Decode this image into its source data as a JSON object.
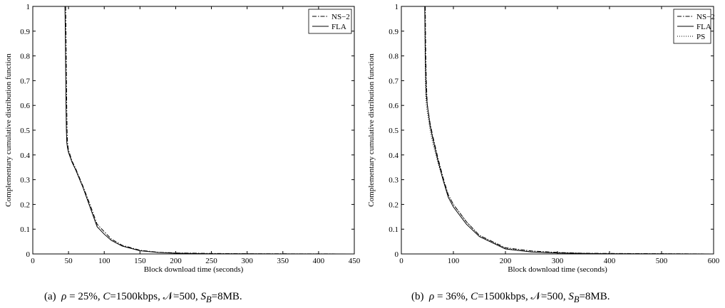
{
  "chart_data": [
    {
      "type": "line",
      "xlabel": "Block download time (seconds)",
      "ylabel": "Complementary cumulative distribution function",
      "xlim": [
        0,
        450
      ],
      "ylim": [
        0,
        1
      ],
      "xticks": [
        "0",
        "50",
        "100",
        "150",
        "200",
        "250",
        "300",
        "350",
        "400",
        "450"
      ],
      "yticks": [
        "0",
        "0.1",
        "0.2",
        "0.3",
        "0.4",
        "0.5",
        "0.6",
        "0.7",
        "0.8",
        "0.9",
        "1"
      ],
      "legend_position": "top-right",
      "series": [
        {
          "name": "NS−2",
          "style": "dash-dot",
          "x": [
            46,
            46.5,
            47,
            47.5,
            48,
            48.6,
            50,
            55,
            60,
            70,
            80,
            90,
            100,
            110,
            125,
            150,
            175,
            200,
            250,
            300,
            450
          ],
          "y": [
            1.0,
            0.9,
            0.75,
            0.6,
            0.5,
            0.45,
            0.42,
            0.375,
            0.345,
            0.275,
            0.2,
            0.12,
            0.09,
            0.06,
            0.035,
            0.015,
            0.007,
            0.004,
            0.002,
            0.001,
            0.0
          ]
        },
        {
          "name": "FLA",
          "style": "solid",
          "x": [
            45,
            45.5,
            46,
            46.5,
            47,
            47.6,
            48.5,
            50,
            55,
            60,
            70,
            80,
            90,
            100,
            110,
            125,
            150,
            175,
            200,
            250,
            300,
            450
          ],
          "y": [
            1.0,
            0.9,
            0.75,
            0.6,
            0.5,
            0.45,
            0.43,
            0.41,
            0.37,
            0.34,
            0.27,
            0.19,
            0.11,
            0.08,
            0.055,
            0.032,
            0.013,
            0.006,
            0.003,
            0.001,
            0.0005,
            0.0
          ]
        }
      ]
    },
    {
      "type": "line",
      "xlabel": "Block download time (seconds)",
      "ylabel": "Complementary cumulative distribution function",
      "xlim": [
        0,
        600
      ],
      "ylim": [
        0,
        1
      ],
      "xticks": [
        "0",
        "100",
        "200",
        "300",
        "400",
        "500",
        "600"
      ],
      "yticks": [
        "0",
        "0.1",
        "0.2",
        "0.3",
        "0.4",
        "0.5",
        "0.6",
        "0.7",
        "0.8",
        "0.9",
        "1"
      ],
      "legend_position": "top-right",
      "series": [
        {
          "name": "NS−2",
          "style": "dash-dot",
          "x": [
            46,
            46.5,
            47,
            48,
            49,
            50,
            55,
            60,
            70,
            80,
            90,
            100,
            125,
            150,
            200,
            250,
            300,
            350,
            400,
            600
          ],
          "y": [
            1.0,
            0.9,
            0.8,
            0.7,
            0.64,
            0.6,
            0.53,
            0.48,
            0.39,
            0.31,
            0.24,
            0.2,
            0.13,
            0.075,
            0.025,
            0.012,
            0.006,
            0.003,
            0.002,
            0.0
          ]
        },
        {
          "name": "FLA",
          "style": "solid",
          "x": [
            45,
            45.5,
            46,
            47,
            48,
            50,
            55,
            60,
            70,
            80,
            90,
            100,
            125,
            150,
            200,
            250,
            300,
            350,
            400,
            600
          ],
          "y": [
            1.0,
            0.9,
            0.8,
            0.7,
            0.64,
            0.6,
            0.52,
            0.47,
            0.38,
            0.3,
            0.23,
            0.19,
            0.12,
            0.07,
            0.02,
            0.008,
            0.004,
            0.002,
            0.001,
            0.0
          ]
        },
        {
          "name": "PS",
          "style": "dotted",
          "x": [
            45,
            45.5,
            46,
            47,
            48,
            50,
            55,
            60,
            70,
            80,
            90,
            100,
            125,
            150,
            200,
            250,
            300,
            350,
            400,
            600
          ],
          "y": [
            1.0,
            0.85,
            0.72,
            0.64,
            0.6,
            0.57,
            0.5,
            0.45,
            0.37,
            0.3,
            0.24,
            0.2,
            0.13,
            0.075,
            0.022,
            0.009,
            0.004,
            0.002,
            0.001,
            0.0
          ]
        }
      ]
    }
  ],
  "captions": [
    {
      "label": "(a)",
      "rho_sym": "ρ",
      "rho_val": " = 25%, ",
      "c_sym": "C",
      "c_val": "=1500kbps, ",
      "n_sym": "𝒩",
      "n_val": "=500, ",
      "s_sym": "S",
      "s_sub": "B",
      "s_val": "=8MB."
    },
    {
      "label": "(b)",
      "rho_sym": "ρ",
      "rho_val": " = 36%, ",
      "c_sym": "C",
      "c_val": "=1500kbps, ",
      "n_sym": "𝒩",
      "n_val": "=500, ",
      "s_sym": "S",
      "s_sub": "B",
      "s_val": "=8MB."
    }
  ]
}
